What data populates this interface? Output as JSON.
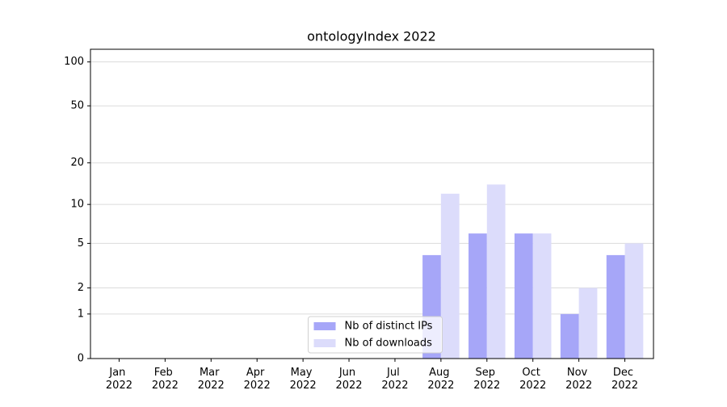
{
  "chart_data": {
    "type": "bar",
    "title": "ontologyIndex 2022",
    "categories": [
      "Jan 2022",
      "Feb 2022",
      "Mar 2022",
      "Apr 2022",
      "May 2022",
      "Jun 2022",
      "Jul 2022",
      "Aug 2022",
      "Sep 2022",
      "Oct 2022",
      "Nov 2022",
      "Dec 2022"
    ],
    "series": [
      {
        "name": "Nb of distinct IPs",
        "color": "#a6a6f8",
        "values": [
          0,
          0,
          0,
          0,
          0,
          0,
          0,
          4,
          6,
          6,
          1,
          4
        ]
      },
      {
        "name": "Nb of downloads",
        "color": "#dcdcfb",
        "values": [
          0,
          0,
          0,
          0,
          0,
          0,
          0,
          12,
          14,
          6,
          2,
          5
        ]
      }
    ],
    "yscale": "log1p",
    "ylim": [
      0,
      122
    ],
    "yticks": [
      0,
      1,
      2,
      5,
      10,
      20,
      50,
      100
    ],
    "grid": true,
    "legend": "lower center"
  }
}
